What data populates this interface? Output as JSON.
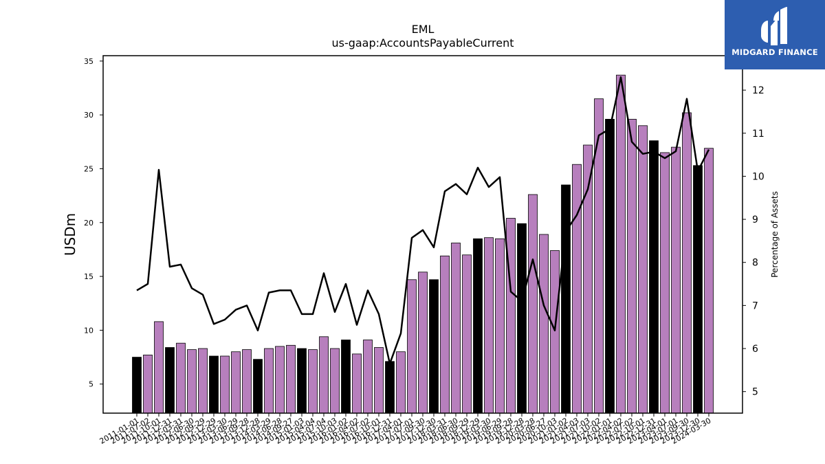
{
  "chart_data": {
    "type": "bar",
    "title": "EML",
    "subtitle": "us-gaap:AccountsPayableCurrent",
    "ylabel": "USDm",
    "y2label": "Percentage of Assets",
    "ylim": [
      2.3,
      35.5
    ],
    "y2lim": [
      4.5,
      12.8
    ],
    "yticks": [
      5,
      10,
      15,
      20,
      25,
      30,
      35
    ],
    "y2ticks": [
      5,
      6,
      7,
      8,
      9,
      10,
      11,
      12
    ],
    "grid": false,
    "categories": [
      "2011-01-01",
      "2011-07-02",
      "2011-10-01",
      "2011-12-31",
      "2012-03-31",
      "2012-06-30",
      "2012-09-29",
      "2012-12-29",
      "2013-03-30",
      "2013-06-29",
      "2013-09-28",
      "2013-12-28",
      "2014-03-29",
      "2014-06-28",
      "2014-09-27",
      "2015-01-03",
      "2015-04-04",
      "2015-07-04",
      "2015-10-03",
      "2016-01-02",
      "2016-04-02",
      "2016-07-02",
      "2016-10-01",
      "2016-12-31",
      "2017-04-01",
      "2017-07-01",
      "2017-09-30",
      "2017-12-30",
      "2018-03-31",
      "2018-06-30",
      "2018-09-29",
      "2018-12-29",
      "2019-03-30",
      "2019-06-29",
      "2019-09-28",
      "2019-12-28",
      "2020-03-28",
      "2020-06-27",
      "2020-10-03",
      "2021-01-02",
      "2021-04-03",
      "2021-07-03",
      "2021-10-02",
      "2022-01-01",
      "2022-04-02",
      "2022-07-02",
      "2022-10-01",
      "2022-12-31",
      "2023-04-01",
      "2023-07-01",
      "2023-09-30",
      "2023-12-30",
      "2024-03-30"
    ],
    "xtick_labels": [
      "2011-01-01",
      "2011-07-02",
      "2011-10-01",
      "2011-12-31",
      "2012-03-31",
      "2012-06-30",
      "2012-09-29",
      "2012-12-29",
      "2013-03-30",
      "2013-06-29",
      "2013-09-28",
      "2013-12-28",
      "2014-03-29",
      "2014-06-28",
      "2014-09-27",
      "2015-01-03",
      "2015-04-04",
      "2015-07-04",
      "2015-10-03",
      "2016-01-02",
      "2016-04-02",
      "2016-07-02",
      "2016-10-01",
      "2016-12-31",
      "2017-04-01",
      "2017-07-01",
      "2017-09-30",
      "2017-12-30",
      "2018-03-31",
      "2018-06-30",
      "2018-09-29",
      "2018-12-29",
      "2019-03-30",
      "2019-06-29",
      "2019-09-28",
      "2019-12-28",
      "2020-03-28",
      "2020-06-27",
      "2020-10-03",
      "2021-01-02",
      "2021-04-03",
      "2021-07-03",
      "2021-10-02",
      "2022-01-01",
      "2022-04-02",
      "2022-07-02",
      "2022-10-01",
      "2022-12-31",
      "2023-04-01",
      "2023-07-01",
      "2023-09-30",
      "2023-12-30",
      "2024-03-30"
    ],
    "series": [
      {
        "type": "bar",
        "axis": "left",
        "values": [
          7.5,
          7.7,
          10.8,
          8.4,
          8.8,
          8.2,
          8.3,
          7.6,
          7.6,
          8.0,
          8.2,
          7.3,
          8.3,
          8.5,
          8.6,
          8.3,
          8.2,
          9.4,
          8.3,
          9.1,
          7.8,
          9.1,
          8.4,
          7.1,
          8.0,
          14.7,
          15.4,
          14.7,
          16.9,
          18.1,
          17.0,
          18.5,
          18.6,
          18.5,
          20.4,
          19.9,
          22.6,
          18.9,
          17.4,
          23.5,
          25.4,
          27.2,
          31.5,
          29.6,
          33.7,
          29.6,
          29.0,
          27.6,
          26.5,
          27.0,
          30.2,
          25.3,
          26.9
        ],
        "colors": [
          "#000000",
          "#b77fbd",
          "#b77fbd",
          "#000000",
          "#b77fbd",
          "#b77fbd",
          "#b77fbd",
          "#000000",
          "#b77fbd",
          "#b77fbd",
          "#b77fbd",
          "#000000",
          "#b77fbd",
          "#b77fbd",
          "#b77fbd",
          "#000000",
          "#b77fbd",
          "#b77fbd",
          "#b77fbd",
          "#000000",
          "#b77fbd",
          "#b77fbd",
          "#b77fbd",
          "#000000",
          "#b77fbd",
          "#b77fbd",
          "#b77fbd",
          "#000000",
          "#b77fbd",
          "#b77fbd",
          "#b77fbd",
          "#000000",
          "#b77fbd",
          "#b77fbd",
          "#b77fbd",
          "#000000",
          "#b77fbd",
          "#b77fbd",
          "#b77fbd",
          "#000000",
          "#b77fbd",
          "#b77fbd",
          "#b77fbd",
          "#000000",
          "#b77fbd",
          "#b77fbd",
          "#b77fbd",
          "#000000",
          "#b77fbd",
          "#b77fbd",
          "#b77fbd",
          "#000000",
          "#b77fbd"
        ]
      },
      {
        "type": "line",
        "axis": "right",
        "color": "#000000",
        "values": [
          7.35,
          7.5,
          10.15,
          7.9,
          7.95,
          7.4,
          7.25,
          6.57,
          6.67,
          6.9,
          7.0,
          6.42,
          7.3,
          7.35,
          7.35,
          6.8,
          6.8,
          7.75,
          6.85,
          7.5,
          6.55,
          7.35,
          6.8,
          5.65,
          6.35,
          8.57,
          8.75,
          8.35,
          9.65,
          9.82,
          9.58,
          10.2,
          9.75,
          9.98,
          7.32,
          7.1,
          8.07,
          7.0,
          6.42,
          8.72,
          9.1,
          9.7,
          10.95,
          11.1,
          12.3,
          10.8,
          10.52,
          10.57,
          10.42,
          10.58,
          11.8,
          10.12,
          10.62
        ]
      }
    ],
    "legend": "none",
    "colors": {
      "primary_bar": "#b77fbd",
      "annual_bar": "#000000",
      "line": "#000000"
    }
  },
  "logo": {
    "text": "MIDGARD FINANCE",
    "background": "#2d5eb0",
    "icon": "midgard-logo-icon"
  }
}
